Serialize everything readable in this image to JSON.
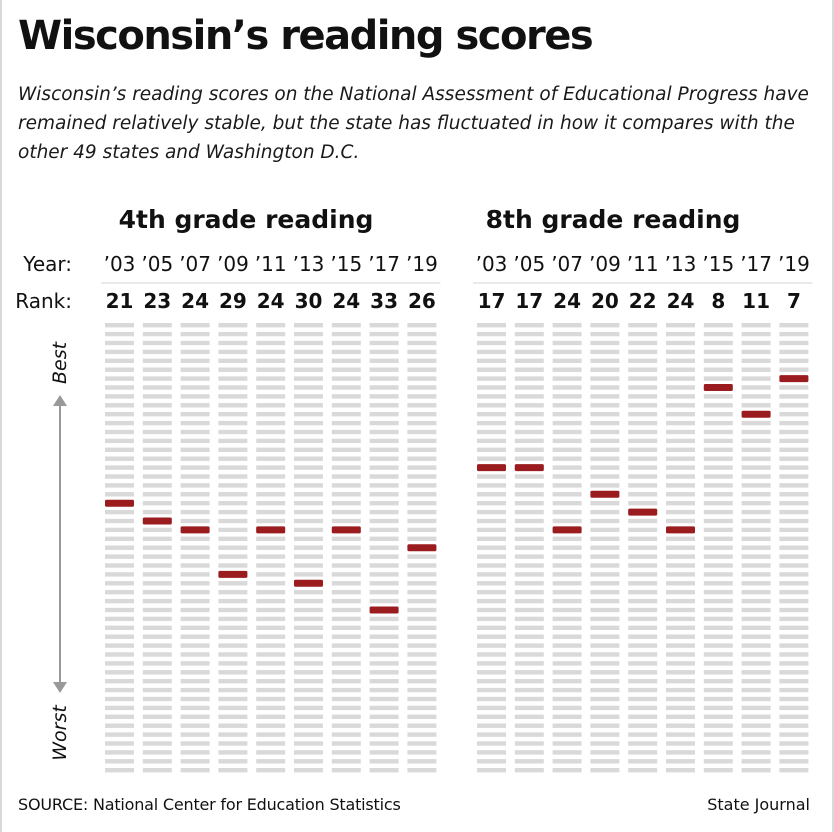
{
  "title": "Wisconsin’s reading scores",
  "subtitle": "Wisconsin’s reading scores on the National Assessment of Educational Progress have remained relatively stable, but the state has fluctuated in how it compares with the other 49 states and Washington D.C.",
  "row_labels": {
    "year": "Year:",
    "rank": "Rank:"
  },
  "axis": {
    "best": "Best",
    "worst": "Worst"
  },
  "source": "SOURCE: National Center for Education Statistics",
  "credit": "State Journal",
  "colors": {
    "highlight": "#9b1c1f",
    "slot": "#d9d9d9",
    "arrow": "#999999"
  },
  "chart_data": [
    {
      "type": "dot-rank",
      "title": "4th grade reading",
      "categories": [
        "’03",
        "’05",
        "’07",
        "’09",
        "’11",
        "’13",
        "’15",
        "’17",
        "’19"
      ],
      "values": [
        21,
        23,
        24,
        29,
        24,
        30,
        24,
        33,
        26
      ],
      "ylim": [
        1,
        51
      ]
    },
    {
      "type": "dot-rank",
      "title": "8th grade reading",
      "categories": [
        "’03",
        "’05",
        "’07",
        "’09",
        "’11",
        "’13",
        "’15",
        "’17",
        "’19"
      ],
      "values": [
        17,
        17,
        24,
        20,
        22,
        24,
        8,
        11,
        7
      ],
      "ylim": [
        1,
        51
      ]
    }
  ]
}
